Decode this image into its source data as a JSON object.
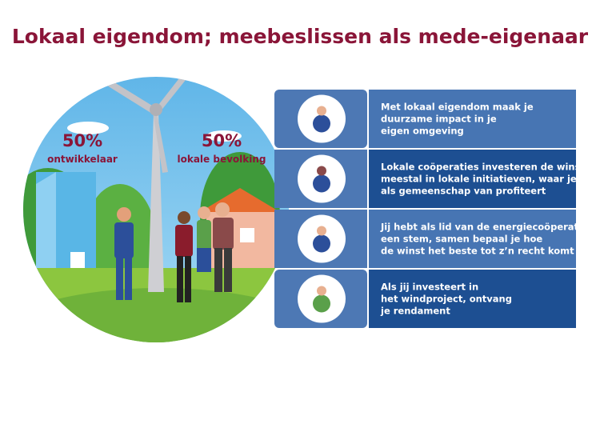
{
  "title": "Lokaal eigendom; meebeslissen als mede-eigenaar",
  "shares": [
    {
      "percent": "50%",
      "label": "ontwikkelaar"
    },
    {
      "percent": "50%",
      "label": "lokale bevolking"
    }
  ],
  "rows": [
    {
      "lines": [
        "Met lokaal eigendom maak je",
        "duurzame impact in je",
        "eigen omgeving"
      ]
    },
    {
      "lines": [
        "Lokale coöperaties investeren de winst",
        "meestal in lokale initiatieven, waar je",
        "als gemeenschap van profiteert"
      ]
    },
    {
      "lines": [
        "Jij hebt als lid van de energiecoöperatie",
        "een stem, samen bepaal je hoe",
        "de winst het beste tot z’n recht komt"
      ]
    },
    {
      "lines": [
        "Als jij investeert in",
        "het windproject, ontvang",
        "je rendament"
      ]
    }
  ]
}
